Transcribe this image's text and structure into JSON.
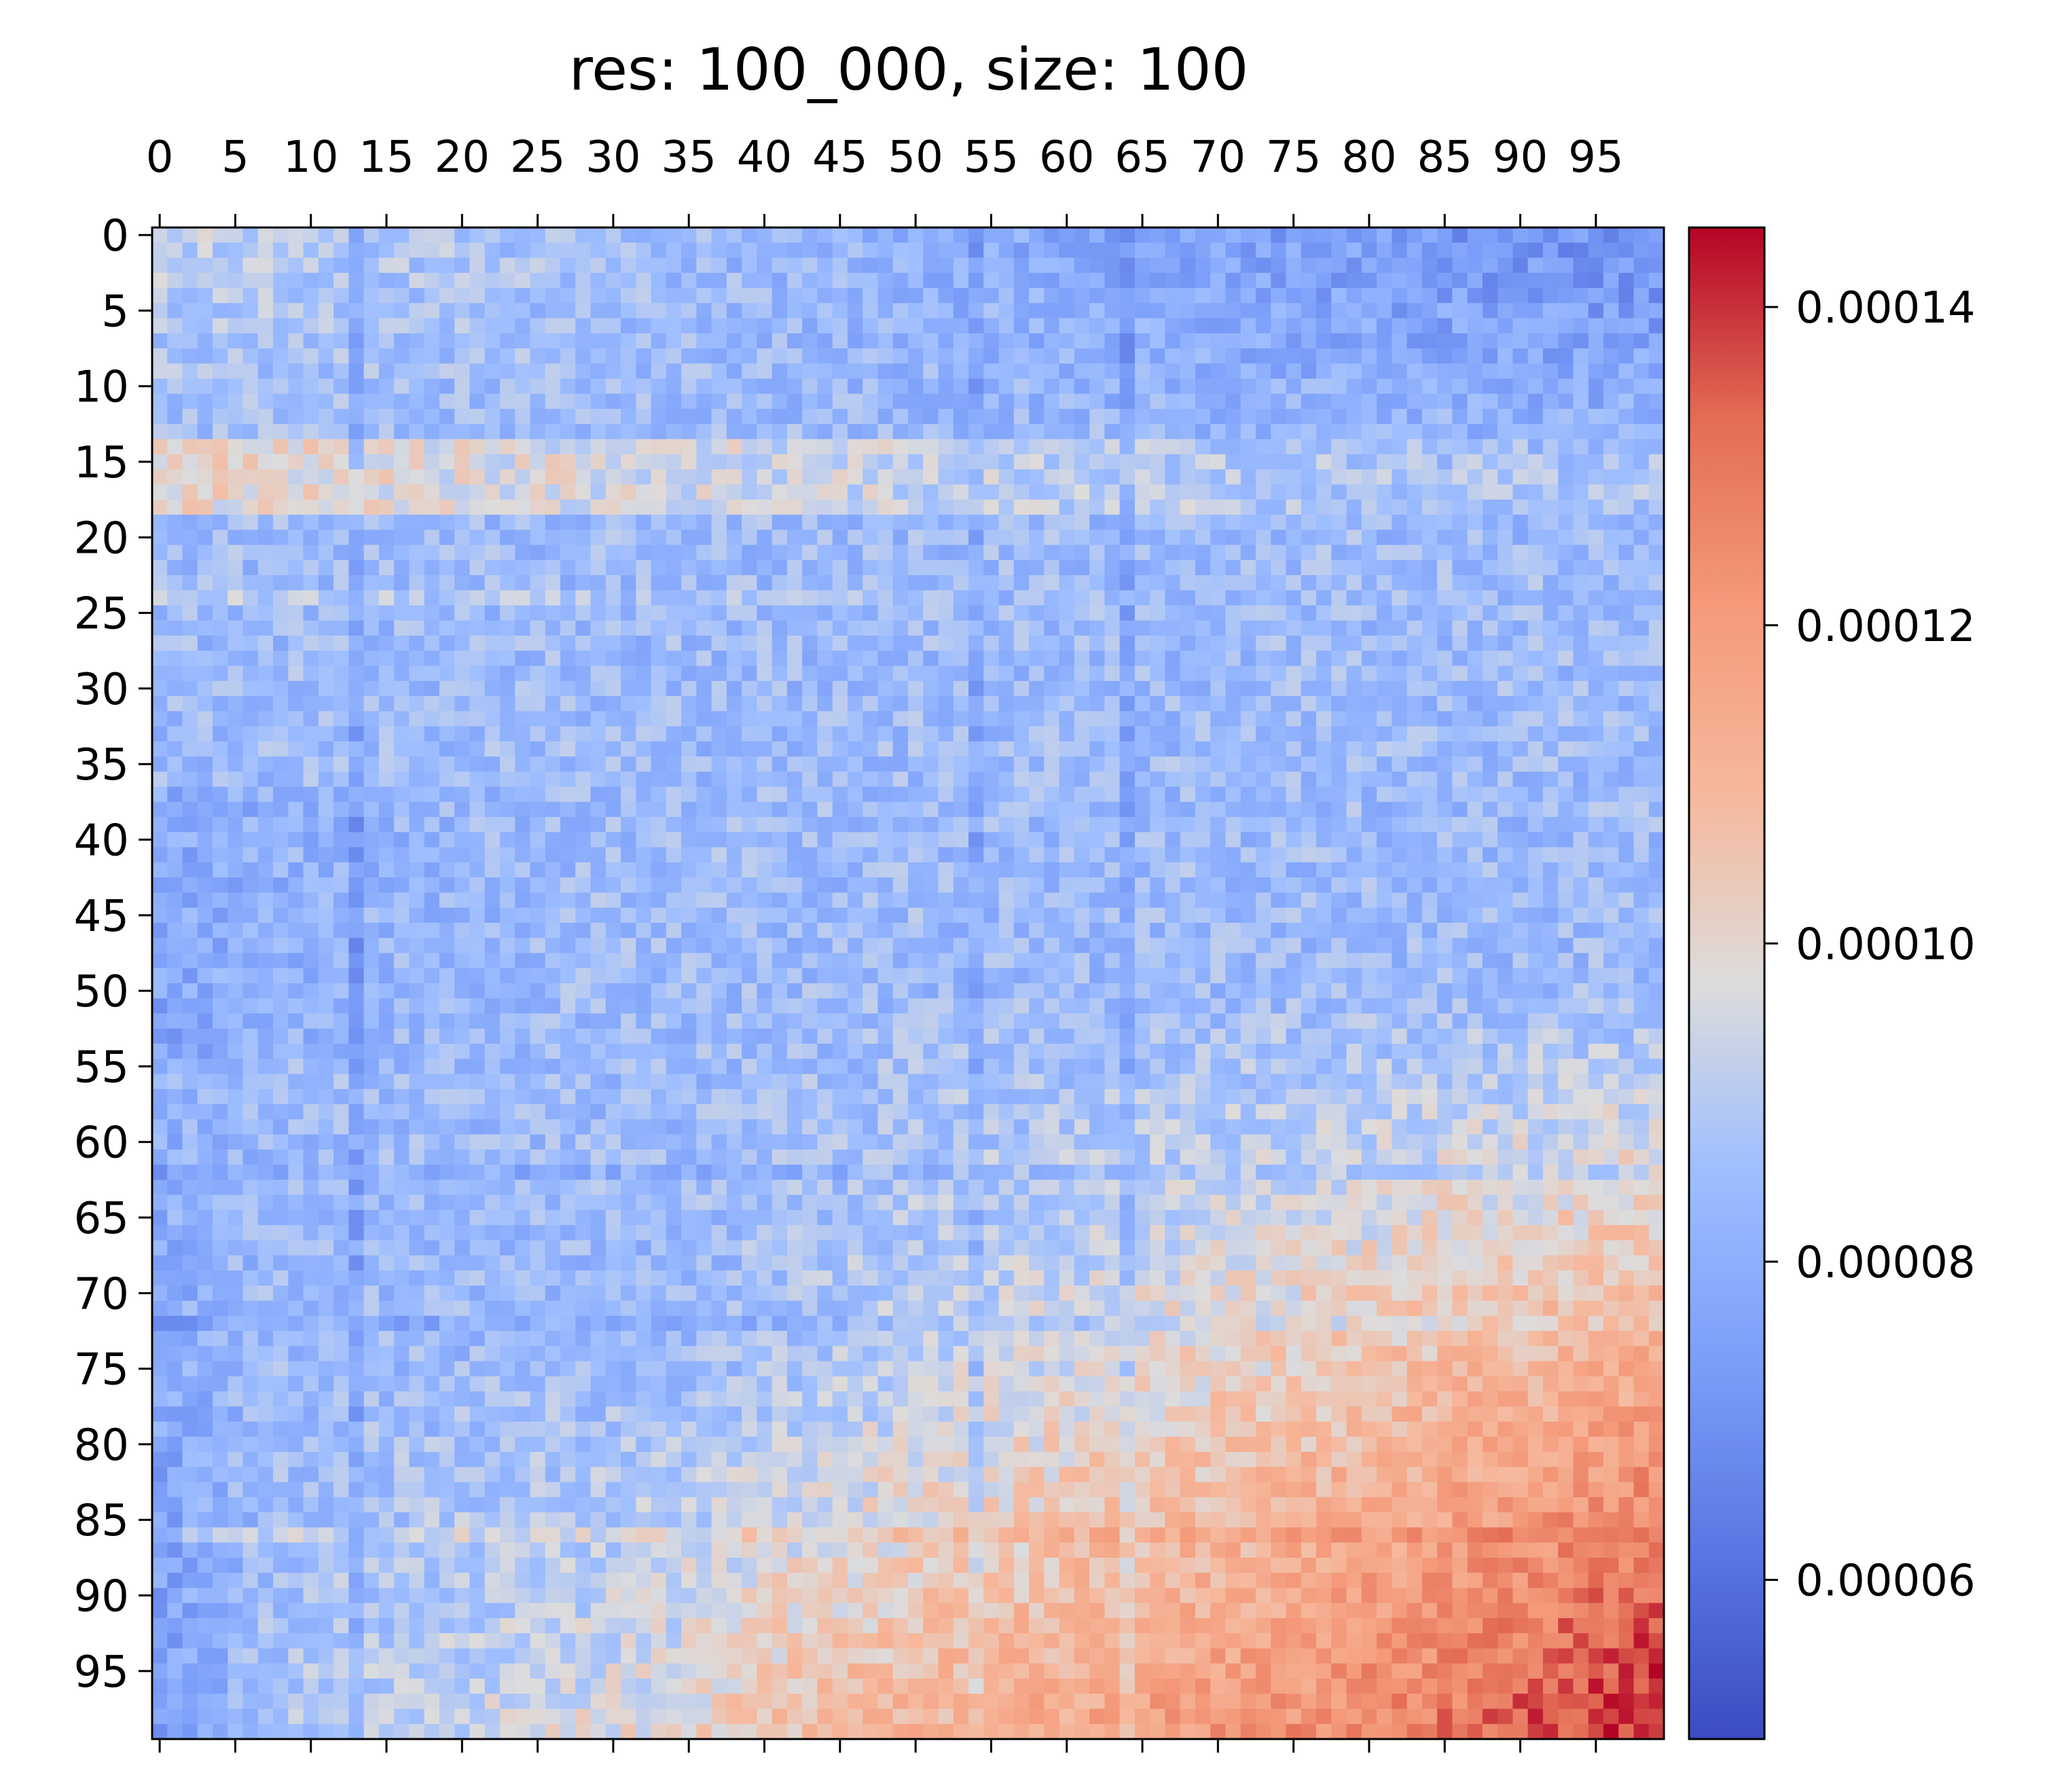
{
  "chart_data": {
    "type": "heatmap",
    "title": "res: 100_000, size: 100",
    "xlabel": "",
    "ylabel": "",
    "rows": 100,
    "cols": 100,
    "x_ticks": [
      "0",
      "5",
      "10",
      "15",
      "20",
      "25",
      "30",
      "35",
      "40",
      "45",
      "50",
      "55",
      "60",
      "65",
      "70",
      "75",
      "80",
      "85",
      "90",
      "95"
    ],
    "y_ticks": [
      "0",
      "5",
      "10",
      "15",
      "20",
      "25",
      "30",
      "35",
      "40",
      "45",
      "50",
      "55",
      "60",
      "65",
      "70",
      "75",
      "80",
      "85",
      "90",
      "95"
    ],
    "x_tick_values": [
      0,
      5,
      10,
      15,
      20,
      25,
      30,
      35,
      40,
      45,
      50,
      55,
      60,
      65,
      70,
      75,
      80,
      85,
      90,
      95
    ],
    "y_tick_values": [
      0,
      5,
      10,
      15,
      20,
      25,
      30,
      35,
      40,
      45,
      50,
      55,
      60,
      65,
      70,
      75,
      80,
      85,
      90,
      95
    ],
    "x_axis_position": "top",
    "colormap": "coolwarm",
    "value_range": [
      5e-05,
      0.000145
    ],
    "colorbar": {
      "position": "right",
      "ticks": [
        "0.00006",
        "0.00008",
        "0.00010",
        "0.00012",
        "0.00014"
      ],
      "tick_values": [
        6e-05,
        8e-05,
        0.0001,
        0.00012,
        0.00014
      ]
    },
    "grid": false
  }
}
